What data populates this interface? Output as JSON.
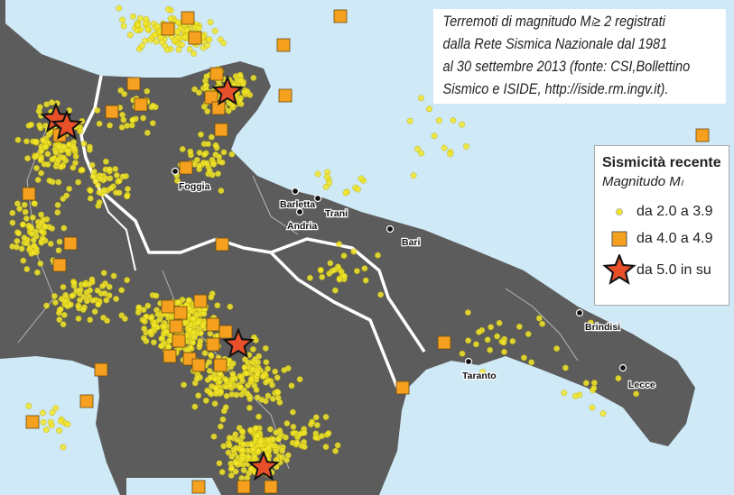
{
  "caption": {
    "lines": [
      "Terremoti di magnitudo Mₗ≥ 2 registrati",
      "dalla Rete Sismica Nazionale dal 1981",
      "al 30 settembre 2013 (fonte: CSI,Bollettino",
      "Sismico e ISIDE, http://iside.rm.ingv.it)."
    ]
  },
  "legend": {
    "title": "Sismicità recente",
    "subtitle": "Magnitudo Mₗ",
    "items": [
      {
        "label": "da 2.0 a 3.9",
        "symbol": "yellow-dot",
        "color": "#f2e62a"
      },
      {
        "label": "da 4.0 a 4.9",
        "symbol": "orange-square",
        "color": "#f5a11f"
      },
      {
        "label": "da 5.0 in su",
        "symbol": "red-star",
        "color": "#e8502a"
      }
    ]
  },
  "cities": [
    "Foggia",
    "Barletta",
    "Trani",
    "Andria",
    "Bari",
    "Brindisi",
    "Taranto",
    "Lecce"
  ],
  "colors": {
    "sea": "#cfe9f6",
    "land": "#5c5c5c",
    "border": "#ffffff"
  }
}
